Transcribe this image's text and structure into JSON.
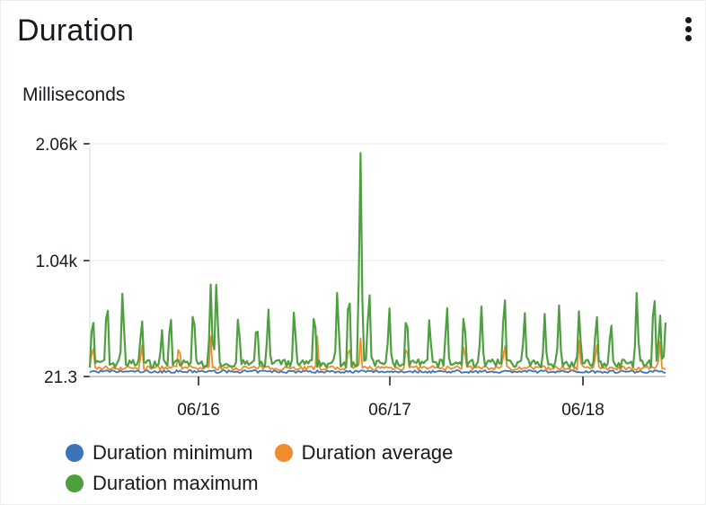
{
  "widget": {
    "title": "Duration",
    "menu_icon": "more-vertical-icon"
  },
  "chart_data": {
    "type": "line",
    "title": "Duration",
    "ylabel": "Milliseconds",
    "xlabel": "",
    "x_ticks": [
      "06/16",
      "06/17",
      "06/18"
    ],
    "y_ticks": [
      "21.3",
      "1.04k",
      "2.06k"
    ],
    "ylim": [
      21.3,
      2060
    ],
    "grid": true,
    "legend_position": "bottom",
    "series": [
      {
        "name": "Duration minimum",
        "color": "#3b73b9"
      },
      {
        "name": "Duration average",
        "color": "#ef8c2d"
      },
      {
        "name": "Duration maximum",
        "color": "#4ea03f"
      }
    ]
  }
}
